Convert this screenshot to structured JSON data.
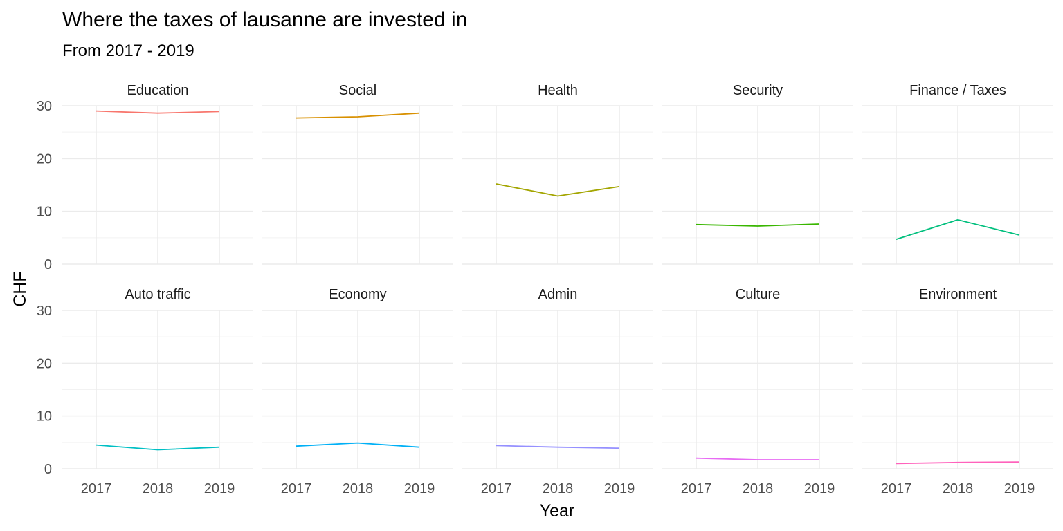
{
  "chart_data": {
    "type": "line",
    "title": "Where the taxes of lausanne are invested in",
    "subtitle": "From 2017 - 2019",
    "xlabel": "Year",
    "ylabel": "CHF",
    "x": [
      2017,
      2018,
      2019
    ],
    "x_tick_labels": [
      "2017",
      "2018",
      "2019"
    ],
    "ylim": [
      0,
      30
    ],
    "y_ticks": [
      0,
      10,
      20,
      30
    ],
    "y_tick_labels": [
      "0",
      "10",
      "20",
      "30"
    ],
    "grid": true,
    "facet_layout": "2 rows x 5 columns",
    "series": [
      {
        "name": "Education",
        "color": "#F8766D",
        "values": [
          29.0,
          28.6,
          28.9
        ]
      },
      {
        "name": "Social",
        "color": "#D89000",
        "values": [
          27.7,
          27.9,
          28.6
        ]
      },
      {
        "name": "Health",
        "color": "#A3A500",
        "values": [
          15.2,
          12.9,
          14.7
        ]
      },
      {
        "name": "Security",
        "color": "#39B600",
        "values": [
          7.5,
          7.2,
          7.6
        ]
      },
      {
        "name": "Finance / Taxes",
        "color": "#00BF7D",
        "values": [
          4.7,
          8.4,
          5.5
        ]
      },
      {
        "name": "Auto traffic",
        "color": "#00BFC4",
        "values": [
          4.5,
          3.6,
          4.1
        ]
      },
      {
        "name": "Economy",
        "color": "#00B0F6",
        "values": [
          4.3,
          4.9,
          4.1
        ]
      },
      {
        "name": "Admin",
        "color": "#9590FF",
        "values": [
          4.4,
          4.1,
          3.9
        ]
      },
      {
        "name": "Culture",
        "color": "#E76BF3",
        "values": [
          2.0,
          1.7,
          1.7
        ]
      },
      {
        "name": "Environment",
        "color": "#FF62BC",
        "values": [
          1.0,
          1.2,
          1.3
        ]
      }
    ]
  }
}
